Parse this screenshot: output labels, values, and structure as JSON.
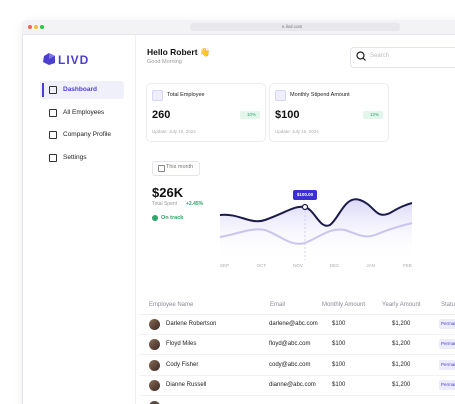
{
  "browser": {
    "url": "e.livd.com"
  },
  "sidebar": {
    "logo": "LIVD",
    "menu": [
      "Dashboard",
      "All Employees",
      "Company Profile",
      "Settings"
    ]
  },
  "header": {
    "greeting": "Hello Robert 👋",
    "subtitle": "Good Morning",
    "search_placeholder": "Search"
  },
  "cards": [
    {
      "title": "Total Employee",
      "value": "260",
      "change": "10%",
      "updated": "Update: July 10, 2024"
    },
    {
      "title": "Monthly Stipend Amount",
      "value": "$100",
      "change": "12%",
      "updated": "Update: July 10, 2024"
    }
  ],
  "spending": {
    "period": "This month",
    "amount": "$26K",
    "label": "Total Spent",
    "change": "+2.45%",
    "status": "On track",
    "tooltip": "$100.00",
    "months": [
      "SEP",
      "OCT",
      "NOV",
      "DEC",
      "JAN",
      "FEB"
    ]
  },
  "table": {
    "columns": [
      "Employee Name",
      "Email",
      "Monthly Amount",
      "Yearly Amount",
      "Status"
    ],
    "rows": [
      [
        "Darlene Robertson",
        "darlene@abc.com",
        "$100",
        "$1,200",
        "Permanent"
      ],
      [
        "Floyd Miles",
        "floyd@abc.com",
        "$100",
        "$1,200",
        "Permanent"
      ],
      [
        "Cody Fisher",
        "cody@abc.com",
        "$100",
        "$1,200",
        "Permanent"
      ],
      [
        "Dianne Russell",
        "dianne@abc.com",
        "$100",
        "$1,200",
        "Permanent"
      ]
    ]
  }
}
